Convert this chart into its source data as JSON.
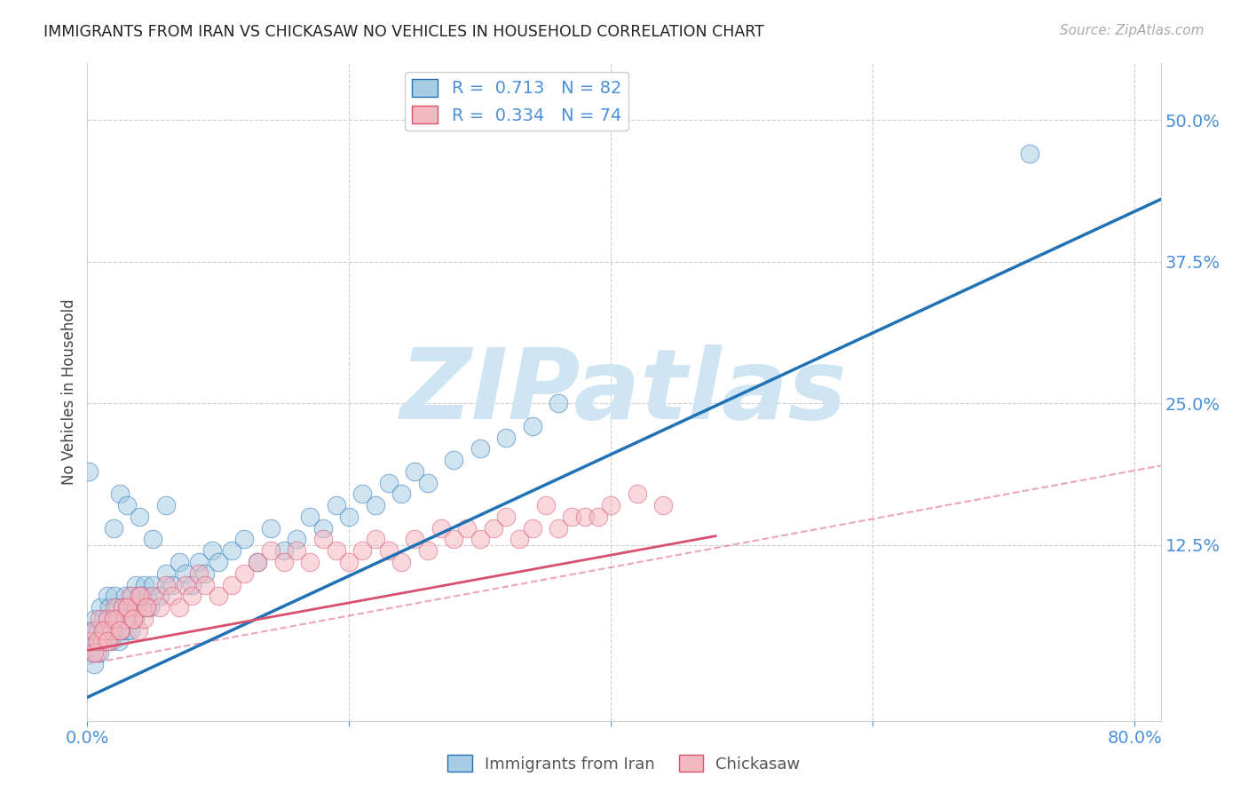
{
  "title": "IMMIGRANTS FROM IRAN VS CHICKASAW NO VEHICLES IN HOUSEHOLD CORRELATION CHART",
  "source_text": "Source: ZipAtlas.com",
  "ylabel": "No Vehicles in Household",
  "blue_R": "0.713",
  "blue_N": "82",
  "pink_R": "0.334",
  "pink_N": "74",
  "legend_label_blue": "Immigrants from Iran",
  "legend_label_pink": "Chickasaw",
  "blue_color": "#a8cce4",
  "pink_color": "#f4b8c1",
  "blue_line_color": "#2171b5",
  "pink_line_color": "#d94f6e",
  "axis_label_color": "#4a90d9",
  "background_color": "#ffffff",
  "grid_color": "#cccccc",
  "watermark_color": "#cfe5f3",
  "xlim": [
    0.0,
    0.82
  ],
  "ylim": [
    -0.03,
    0.55
  ],
  "blue_line_x0": -0.005,
  "blue_line_y0": -0.012,
  "blue_line_x1": 0.82,
  "blue_line_y1": 0.43,
  "pink_line_x0": 0.0,
  "pink_line_y0": 0.032,
  "pink_line_x1": 0.48,
  "pink_line_y1": 0.133,
  "dashed_line_x0": 0.0,
  "dashed_line_y0": 0.02,
  "dashed_line_x1": 0.82,
  "dashed_line_y1": 0.195,
  "blue_scatter_x": [
    0.002,
    0.003,
    0.004,
    0.005,
    0.006,
    0.007,
    0.008,
    0.009,
    0.01,
    0.011,
    0.012,
    0.013,
    0.014,
    0.015,
    0.016,
    0.017,
    0.018,
    0.019,
    0.02,
    0.021,
    0.022,
    0.023,
    0.024,
    0.025,
    0.026,
    0.027,
    0.028,
    0.029,
    0.03,
    0.031,
    0.032,
    0.033,
    0.034,
    0.035,
    0.036,
    0.037,
    0.038,
    0.04,
    0.042,
    0.044,
    0.046,
    0.048,
    0.05,
    0.055,
    0.06,
    0.065,
    0.07,
    0.075,
    0.08,
    0.085,
    0.09,
    0.095,
    0.1,
    0.11,
    0.12,
    0.13,
    0.14,
    0.15,
    0.16,
    0.17,
    0.18,
    0.19,
    0.2,
    0.21,
    0.22,
    0.23,
    0.24,
    0.25,
    0.26,
    0.28,
    0.3,
    0.32,
    0.34,
    0.36,
    0.02,
    0.025,
    0.03,
    0.04,
    0.05,
    0.06,
    0.72,
    0.001
  ],
  "blue_scatter_y": [
    0.04,
    0.05,
    0.03,
    0.02,
    0.06,
    0.04,
    0.05,
    0.03,
    0.07,
    0.04,
    0.06,
    0.05,
    0.04,
    0.08,
    0.06,
    0.07,
    0.05,
    0.04,
    0.06,
    0.08,
    0.05,
    0.07,
    0.04,
    0.06,
    0.05,
    0.07,
    0.06,
    0.08,
    0.05,
    0.07,
    0.06,
    0.05,
    0.08,
    0.07,
    0.06,
    0.09,
    0.07,
    0.08,
    0.07,
    0.09,
    0.08,
    0.07,
    0.09,
    0.08,
    0.1,
    0.09,
    0.11,
    0.1,
    0.09,
    0.11,
    0.1,
    0.12,
    0.11,
    0.12,
    0.13,
    0.11,
    0.14,
    0.12,
    0.13,
    0.15,
    0.14,
    0.16,
    0.15,
    0.17,
    0.16,
    0.18,
    0.17,
    0.19,
    0.18,
    0.2,
    0.21,
    0.22,
    0.23,
    0.25,
    0.14,
    0.17,
    0.16,
    0.15,
    0.13,
    0.16,
    0.47,
    0.19
  ],
  "pink_scatter_x": [
    0.003,
    0.005,
    0.007,
    0.009,
    0.011,
    0.013,
    0.015,
    0.017,
    0.019,
    0.021,
    0.023,
    0.025,
    0.027,
    0.029,
    0.031,
    0.033,
    0.035,
    0.037,
    0.039,
    0.041,
    0.043,
    0.045,
    0.05,
    0.055,
    0.06,
    0.065,
    0.07,
    0.075,
    0.08,
    0.085,
    0.09,
    0.1,
    0.11,
    0.12,
    0.13,
    0.14,
    0.15,
    0.16,
    0.17,
    0.18,
    0.19,
    0.2,
    0.21,
    0.22,
    0.23,
    0.24,
    0.25,
    0.26,
    0.27,
    0.28,
    0.29,
    0.3,
    0.31,
    0.32,
    0.33,
    0.34,
    0.35,
    0.36,
    0.37,
    0.38,
    0.39,
    0.4,
    0.42,
    0.44,
    0.005,
    0.008,
    0.012,
    0.015,
    0.02,
    0.025,
    0.03,
    0.035,
    0.04,
    0.045
  ],
  "pink_scatter_y": [
    0.04,
    0.05,
    0.03,
    0.06,
    0.04,
    0.05,
    0.06,
    0.04,
    0.05,
    0.07,
    0.06,
    0.05,
    0.07,
    0.06,
    0.07,
    0.08,
    0.06,
    0.07,
    0.05,
    0.08,
    0.06,
    0.07,
    0.08,
    0.07,
    0.09,
    0.08,
    0.07,
    0.09,
    0.08,
    0.1,
    0.09,
    0.08,
    0.09,
    0.1,
    0.11,
    0.12,
    0.11,
    0.12,
    0.11,
    0.13,
    0.12,
    0.11,
    0.12,
    0.13,
    0.12,
    0.11,
    0.13,
    0.12,
    0.14,
    0.13,
    0.14,
    0.13,
    0.14,
    0.15,
    0.13,
    0.14,
    0.16,
    0.14,
    0.15,
    0.15,
    0.15,
    0.16,
    0.17,
    0.16,
    0.03,
    0.04,
    0.05,
    0.04,
    0.06,
    0.05,
    0.07,
    0.06,
    0.08,
    0.07
  ]
}
